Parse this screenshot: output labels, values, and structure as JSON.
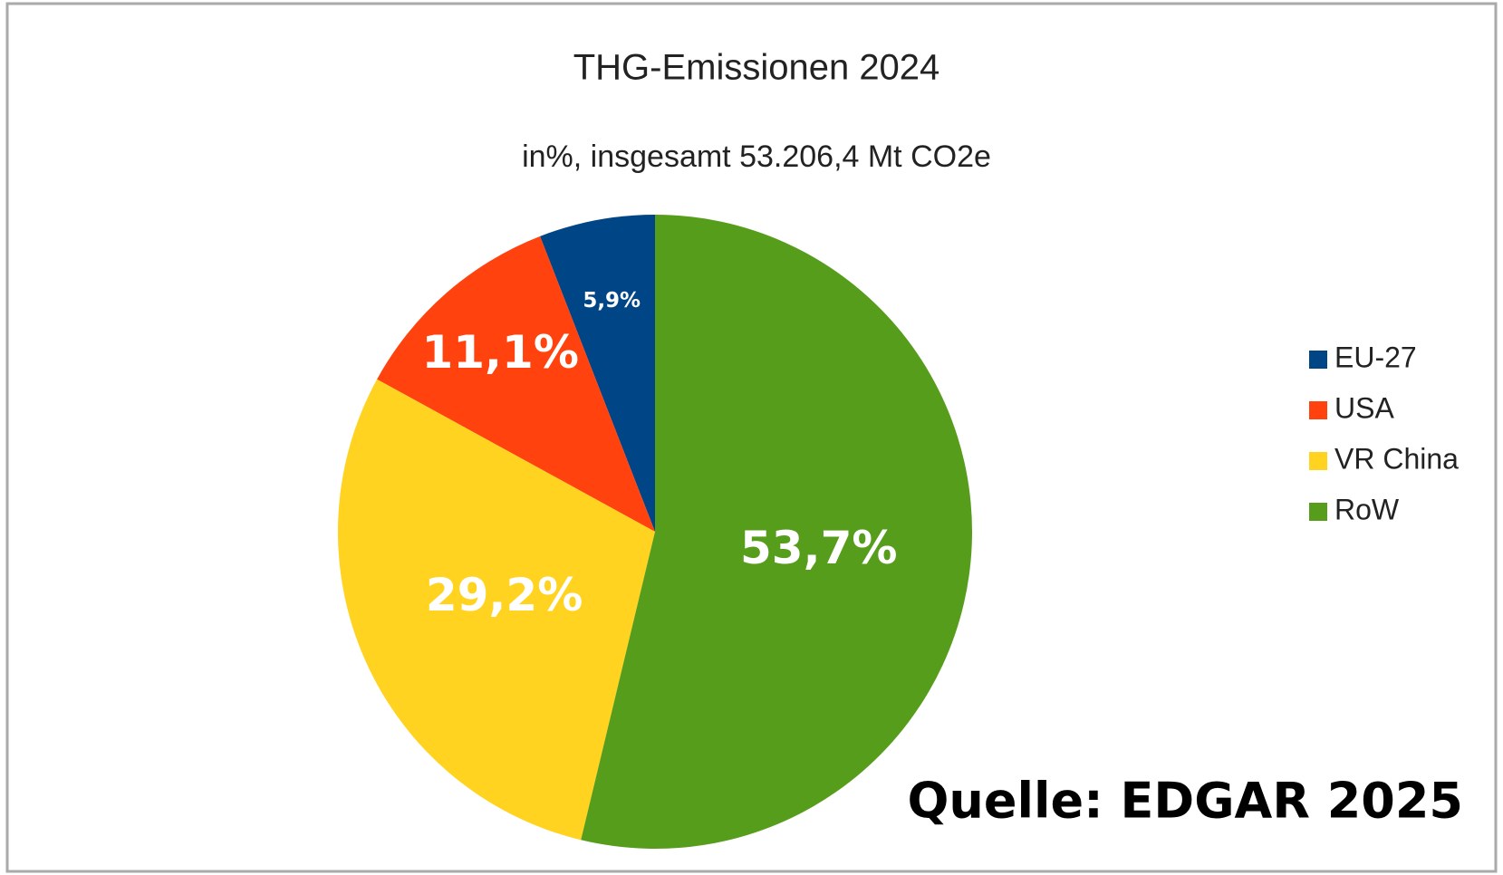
{
  "chart_data": {
    "type": "pie",
    "title": "THG-Emissionen 2024",
    "subtitle": "in%, insgesamt 53.206,4 Mt CO2e",
    "categories": [
      "EU-27",
      "USA",
      "VR China",
      "RoW"
    ],
    "values": [
      5.9,
      11.1,
      29.2,
      53.7
    ],
    "value_labels": [
      "5,9%",
      "11,1%",
      "29,2%",
      "53,7%"
    ],
    "colors": [
      "#004586",
      "#ff420e",
      "#ffd320",
      "#579d1c"
    ],
    "annotation": "Quelle: EDGAR 2025",
    "legend": "right"
  }
}
